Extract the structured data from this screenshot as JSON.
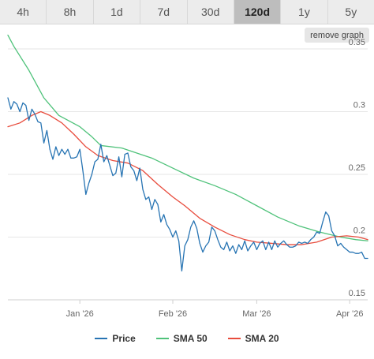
{
  "tabs": [
    {
      "label": "4h",
      "active": false
    },
    {
      "label": "8h",
      "active": false
    },
    {
      "label": "1d",
      "active": false
    },
    {
      "label": "7d",
      "active": false
    },
    {
      "label": "30d",
      "active": false
    },
    {
      "label": "120d",
      "active": true
    },
    {
      "label": "1y",
      "active": false
    },
    {
      "label": "5y",
      "active": false
    }
  ],
  "remove_graph_label": "remove graph",
  "chart_data": {
    "type": "line",
    "xlabel": "",
    "ylabel": "",
    "grid": "horizontal",
    "legend": "bottom",
    "x_range": [
      "2025-12-08",
      "2026-04-07"
    ],
    "ylim": [
      0.15,
      0.35
    ],
    "y_ticks": [
      "0.15",
      "0.2",
      "0.25",
      "0.3",
      "0.35"
    ],
    "x_ticks": [
      {
        "label": "Jan '26",
        "date": "2026-01-01"
      },
      {
        "label": "Feb '26",
        "date": "2026-02-01"
      },
      {
        "label": "Mar '26",
        "date": "2026-03-01"
      },
      {
        "label": "Apr '26",
        "date": "2026-04-01"
      }
    ],
    "series": [
      {
        "name": "Price",
        "color": "#2774b3",
        "points": [
          [
            "2025-12-08",
            0.311
          ],
          [
            "2025-12-09",
            0.302
          ],
          [
            "2025-12-10",
            0.308
          ],
          [
            "2025-12-11",
            0.306
          ],
          [
            "2025-12-12",
            0.3
          ],
          [
            "2025-12-13",
            0.307
          ],
          [
            "2025-12-14",
            0.305
          ],
          [
            "2025-12-15",
            0.293
          ],
          [
            "2025-12-16",
            0.302
          ],
          [
            "2025-12-17",
            0.298
          ],
          [
            "2025-12-18",
            0.292
          ],
          [
            "2025-12-19",
            0.291
          ],
          [
            "2025-12-20",
            0.275
          ],
          [
            "2025-12-21",
            0.285
          ],
          [
            "2025-12-22",
            0.27
          ],
          [
            "2025-12-23",
            0.262
          ],
          [
            "2025-12-24",
            0.272
          ],
          [
            "2025-12-25",
            0.265
          ],
          [
            "2025-12-26",
            0.27
          ],
          [
            "2025-12-27",
            0.266
          ],
          [
            "2025-12-28",
            0.27
          ],
          [
            "2025-12-29",
            0.263
          ],
          [
            "2025-12-30",
            0.263
          ],
          [
            "2025-12-31",
            0.264
          ],
          [
            "2026-01-01",
            0.27
          ],
          [
            "2026-01-02",
            0.253
          ],
          [
            "2026-01-03",
            0.234
          ],
          [
            "2026-01-04",
            0.243
          ],
          [
            "2026-01-05",
            0.25
          ],
          [
            "2026-01-06",
            0.26
          ],
          [
            "2026-01-07",
            0.262
          ],
          [
            "2026-01-08",
            0.274
          ],
          [
            "2026-01-09",
            0.26
          ],
          [
            "2026-01-10",
            0.265
          ],
          [
            "2026-01-11",
            0.257
          ],
          [
            "2026-01-12",
            0.249
          ],
          [
            "2026-01-13",
            0.251
          ],
          [
            "2026-01-14",
            0.264
          ],
          [
            "2026-01-15",
            0.248
          ],
          [
            "2026-01-16",
            0.266
          ],
          [
            "2026-01-17",
            0.267
          ],
          [
            "2026-01-18",
            0.256
          ],
          [
            "2026-01-19",
            0.253
          ],
          [
            "2026-01-20",
            0.245
          ],
          [
            "2026-01-21",
            0.255
          ],
          [
            "2026-01-22",
            0.238
          ],
          [
            "2026-01-23",
            0.23
          ],
          [
            "2026-01-24",
            0.232
          ],
          [
            "2026-01-25",
            0.222
          ],
          [
            "2026-01-26",
            0.23
          ],
          [
            "2026-01-27",
            0.226
          ],
          [
            "2026-01-28",
            0.212
          ],
          [
            "2026-01-29",
            0.218
          ],
          [
            "2026-01-30",
            0.21
          ],
          [
            "2026-01-31",
            0.206
          ],
          [
            "2026-02-01",
            0.2
          ],
          [
            "2026-02-02",
            0.205
          ],
          [
            "2026-02-03",
            0.197
          ],
          [
            "2026-02-04",
            0.173
          ],
          [
            "2026-02-05",
            0.193
          ],
          [
            "2026-02-06",
            0.198
          ],
          [
            "2026-02-07",
            0.208
          ],
          [
            "2026-02-08",
            0.213
          ],
          [
            "2026-02-09",
            0.207
          ],
          [
            "2026-02-10",
            0.195
          ],
          [
            "2026-02-11",
            0.188
          ],
          [
            "2026-02-12",
            0.193
          ],
          [
            "2026-02-13",
            0.196
          ],
          [
            "2026-02-14",
            0.208
          ],
          [
            "2026-02-15",
            0.205
          ],
          [
            "2026-02-16",
            0.198
          ],
          [
            "2026-02-17",
            0.192
          ],
          [
            "2026-02-18",
            0.19
          ],
          [
            "2026-02-19",
            0.196
          ],
          [
            "2026-02-20",
            0.189
          ],
          [
            "2026-02-21",
            0.193
          ],
          [
            "2026-02-22",
            0.187
          ],
          [
            "2026-02-23",
            0.194
          ],
          [
            "2026-02-24",
            0.19
          ],
          [
            "2026-02-25",
            0.197
          ],
          [
            "2026-02-26",
            0.189
          ],
          [
            "2026-02-27",
            0.193
          ],
          [
            "2026-02-28",
            0.196
          ],
          [
            "2026-03-01",
            0.19
          ],
          [
            "2026-03-02",
            0.195
          ],
          [
            "2026-03-03",
            0.197
          ],
          [
            "2026-03-04",
            0.19
          ],
          [
            "2026-03-05",
            0.196
          ],
          [
            "2026-03-06",
            0.19
          ],
          [
            "2026-03-07",
            0.197
          ],
          [
            "2026-03-08",
            0.192
          ],
          [
            "2026-03-09",
            0.195
          ],
          [
            "2026-03-10",
            0.197
          ],
          [
            "2026-03-11",
            0.194
          ],
          [
            "2026-03-12",
            0.192
          ],
          [
            "2026-03-13",
            0.192
          ],
          [
            "2026-03-14",
            0.193
          ],
          [
            "2026-03-15",
            0.196
          ],
          [
            "2026-03-16",
            0.195
          ],
          [
            "2026-03-17",
            0.196
          ],
          [
            "2026-03-18",
            0.195
          ],
          [
            "2026-03-19",
            0.198
          ],
          [
            "2026-03-20",
            0.2
          ],
          [
            "2026-03-21",
            0.204
          ],
          [
            "2026-03-22",
            0.203
          ],
          [
            "2026-03-23",
            0.212
          ],
          [
            "2026-03-24",
            0.22
          ],
          [
            "2026-03-25",
            0.217
          ],
          [
            "2026-03-26",
            0.205
          ],
          [
            "2026-03-27",
            0.201
          ],
          [
            "2026-03-28",
            0.193
          ],
          [
            "2026-03-29",
            0.195
          ],
          [
            "2026-03-30",
            0.192
          ],
          [
            "2026-03-31",
            0.19
          ],
          [
            "2026-04-01",
            0.188
          ],
          [
            "2026-04-02",
            0.188
          ],
          [
            "2026-04-03",
            0.187
          ],
          [
            "2026-04-04",
            0.187
          ],
          [
            "2026-04-05",
            0.188
          ],
          [
            "2026-04-06",
            0.183
          ],
          [
            "2026-04-07",
            0.183
          ]
        ]
      },
      {
        "name": "SMA 50",
        "color": "#4fc27a",
        "points": [
          [
            "2025-12-08",
            0.361
          ],
          [
            "2025-12-10",
            0.352
          ],
          [
            "2025-12-15",
            0.333
          ],
          [
            "2025-12-20",
            0.311
          ],
          [
            "2025-12-25",
            0.297
          ],
          [
            "2026-01-01",
            0.288
          ],
          [
            "2026-01-05",
            0.28
          ],
          [
            "2026-01-08",
            0.273
          ],
          [
            "2026-01-15",
            0.271
          ],
          [
            "2026-01-20",
            0.267
          ],
          [
            "2026-01-25",
            0.263
          ],
          [
            "2026-02-01",
            0.255
          ],
          [
            "2026-02-08",
            0.247
          ],
          [
            "2026-02-15",
            0.241
          ],
          [
            "2026-02-22",
            0.234
          ],
          [
            "2026-03-01",
            0.225
          ],
          [
            "2026-03-08",
            0.216
          ],
          [
            "2026-03-15",
            0.209
          ],
          [
            "2026-03-22",
            0.204
          ],
          [
            "2026-03-29",
            0.2
          ],
          [
            "2026-04-03",
            0.198
          ],
          [
            "2026-04-07",
            0.197
          ]
        ]
      },
      {
        "name": "SMA 20",
        "color": "#e84c3d",
        "points": [
          [
            "2025-12-08",
            0.288
          ],
          [
            "2025-12-12",
            0.291
          ],
          [
            "2025-12-16",
            0.297
          ],
          [
            "2025-12-19",
            0.3
          ],
          [
            "2025-12-22",
            0.297
          ],
          [
            "2025-12-26",
            0.291
          ],
          [
            "2025-12-30",
            0.282
          ],
          [
            "2026-01-03",
            0.272
          ],
          [
            "2026-01-07",
            0.265
          ],
          [
            "2026-01-12",
            0.261
          ],
          [
            "2026-01-17",
            0.259
          ],
          [
            "2026-01-22",
            0.253
          ],
          [
            "2026-01-27",
            0.242
          ],
          [
            "2026-02-01",
            0.232
          ],
          [
            "2026-02-05",
            0.225
          ],
          [
            "2026-02-10",
            0.215
          ],
          [
            "2026-02-15",
            0.208
          ],
          [
            "2026-02-20",
            0.202
          ],
          [
            "2026-02-25",
            0.198
          ],
          [
            "2026-03-01",
            0.196
          ],
          [
            "2026-03-06",
            0.195
          ],
          [
            "2026-03-11",
            0.194
          ],
          [
            "2026-03-16",
            0.194
          ],
          [
            "2026-03-21",
            0.196
          ],
          [
            "2026-03-26",
            0.2
          ],
          [
            "2026-03-31",
            0.201
          ],
          [
            "2026-04-04",
            0.2
          ],
          [
            "2026-04-07",
            0.198
          ]
        ]
      }
    ]
  }
}
